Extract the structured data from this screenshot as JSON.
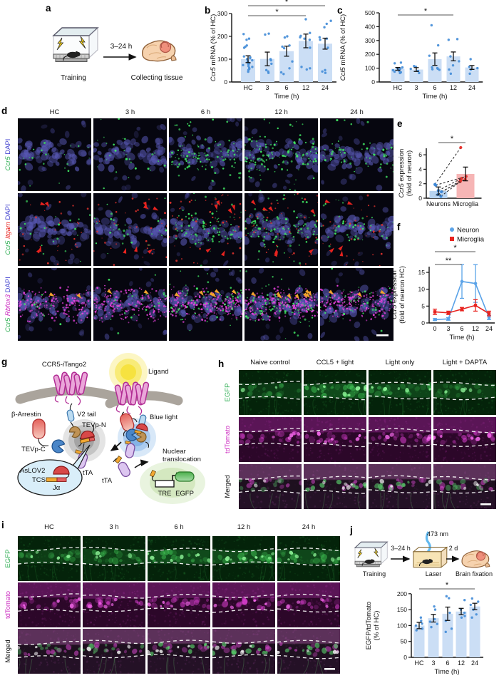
{
  "colors": {
    "bar_fill": "#cbdef5",
    "point_blue": "#4a90d9",
    "green": "#2fae53",
    "magenta": "#cc2cc0",
    "dapi_blue": "#4545d0",
    "red": "#e8231f",
    "orange": "#f2a32c",
    "neuron_line": "#5ba3e8",
    "microglia_line": "#e8231f"
  },
  "panel_a": {
    "label": "a",
    "arrow": "3–24 h",
    "training": "Training",
    "collecting": "Collecting tissue"
  },
  "panel_b": {
    "label": "b"
  },
  "panel_c": {
    "label": "c"
  },
  "panel_d": {
    "label": "d",
    "columns": [
      "HC",
      "3 h",
      "6 h",
      "12 h",
      "24 h"
    ],
    "rows": [
      [
        {
          "t": "Ccr5",
          "c": "#2fae53",
          "i": true
        },
        {
          "t": " DAPI",
          "c": "#4545d0"
        }
      ],
      [
        {
          "t": "Ccr5",
          "c": "#2fae53",
          "i": true
        },
        {
          "t": " ",
          "c": "#111111"
        },
        {
          "t": "Itgam",
          "c": "#e8231f",
          "i": true
        },
        {
          "t": " DAPI",
          "c": "#4545d0"
        }
      ],
      [
        {
          "t": "Ccr5",
          "c": "#2fae53",
          "i": true
        },
        {
          "t": " ",
          "c": "#111111"
        },
        {
          "t": "Rbfox3",
          "c": "#cc2cc0",
          "i": true
        },
        {
          "t": " DAPI",
          "c": "#4545d0"
        }
      ]
    ]
  },
  "panel_e": {
    "label": "e"
  },
  "panel_f": {
    "label": "f"
  },
  "panel_g": {
    "label": "g",
    "labels": {
      "receptor_pre": "CCR5-",
      "receptor_i": "i",
      "receptor_post": "Tango2",
      "beta_arrestin": "β-Arrestin",
      "v2_tail": "V2 tail",
      "tevp_n": "TEVp-N",
      "tevp_c": "TEVp-C",
      "aslov2": "AsLOV2",
      "tcs": "TCS",
      "j_alpha": "Jα",
      "tta_left": "tTA",
      "ligand": "Ligand",
      "blue_light": "Blue light",
      "tta_free": "tTA",
      "nuclear_line1": "Nuclear",
      "nuclear_line2": "translocation",
      "tre": "TRE",
      "egfp": "EGFP"
    }
  },
  "panel_h": {
    "label": "h",
    "columns": [
      "Naive control",
      "CCL5 + light",
      "Light only",
      "Light + DAPTA"
    ],
    "rows": [
      [
        {
          "t": "EGFP",
          "c": "#2fae53"
        }
      ],
      [
        {
          "t": "tdTomato",
          "c": "#cc2cc0"
        }
      ],
      [
        {
          "t": "Merged",
          "c": "#111111"
        }
      ]
    ]
  },
  "panel_i": {
    "label": "i",
    "columns": [
      "HC",
      "3 h",
      "6 h",
      "12 h",
      "24 h"
    ],
    "rows": [
      [
        {
          "t": "EGFP",
          "c": "#2fae53"
        }
      ],
      [
        {
          "t": "tdTomato",
          "c": "#cc2cc0"
        }
      ],
      [
        {
          "t": "Merged",
          "c": "#111111"
        }
      ]
    ]
  },
  "panel_j": {
    "label": "j",
    "arrow1": "3–24 h",
    "wavelength": "473 nm",
    "arrow2": "2 d",
    "training": "Training",
    "laser": "Laser",
    "fixation": "Brain fixation"
  },
  "chart_data": {
    "b": {
      "type": "bar",
      "ylabel": [
        [
          {
            "t": "Ccr5",
            "i": true
          },
          {
            "t": " mRNA (% of HC)"
          }
        ]
      ],
      "xlabel": "Time (h)",
      "categories": [
        "HC",
        "3",
        "6",
        "12",
        "24"
      ],
      "values": [
        100,
        101,
        135,
        180,
        168
      ],
      "errors": [
        15,
        30,
        22,
        30,
        24
      ],
      "points": [
        [
          45,
          52,
          58,
          62,
          66,
          70,
          74,
          78,
          82,
          86,
          90,
          95,
          100,
          104,
          108,
          112,
          150,
          155,
          160,
          185,
          190,
          210
        ],
        [
          40,
          46,
          52,
          80,
          95,
          100,
          208,
          212
        ],
        [
          35,
          42,
          60,
          90,
          148,
          155,
          160,
          195,
          200
        ],
        [
          55,
          60,
          66,
          150,
          185,
          190,
          196,
          202,
          215,
          275
        ],
        [
          40,
          46,
          52,
          150,
          185,
          190,
          196,
          240,
          255,
          268
        ]
      ],
      "ylim": [
        0,
        300
      ],
      "yticks": [
        0,
        100,
        200,
        300
      ],
      "significance": [
        {
          "from": "HC",
          "to": "12",
          "label": "*"
        },
        {
          "from": "HC",
          "to": "24",
          "label": "*"
        }
      ]
    },
    "c": {
      "type": "bar",
      "ylabel": [
        [
          {
            "t": "Ccl5",
            "i": true
          },
          {
            "t": " mRNA (% of HC)"
          }
        ]
      ],
      "xlabel": "Time (h)",
      "categories": [
        "HC",
        "3",
        "6",
        "12",
        "24"
      ],
      "values": [
        95,
        90,
        165,
        185,
        105
      ],
      "errors": [
        10,
        14,
        45,
        32,
        14
      ],
      "points": [
        [
          65,
          70,
          75,
          80,
          85,
          90,
          96,
          100,
          105,
          135,
          140
        ],
        [
          65,
          80,
          95,
          110,
          115
        ],
        [
          88,
          92,
          96,
          100,
          106,
          190,
          265,
          410
        ],
        [
          60,
          90,
          120,
          150,
          185,
          305,
          310
        ],
        [
          60,
          90,
          100,
          110,
          165
        ]
      ],
      "ylim": [
        0,
        500
      ],
      "yticks": [
        0,
        100,
        200,
        300,
        400,
        500
      ],
      "significance": [
        {
          "from": "HC",
          "to": "12",
          "label": "*"
        }
      ]
    },
    "e": {
      "type": "paired-bar",
      "ylabel": [
        [
          {
            "t": "Ccr5",
            "i": true
          },
          {
            "t": " expression"
          }
        ],
        [
          {
            "t": "(fold of neuron)"
          }
        ]
      ],
      "categories": [
        "Neurons",
        "Microglia"
      ],
      "values": [
        1.0,
        3.35
      ],
      "errors": [
        0.55,
        0.95
      ],
      "bar_colors": [
        "#b7d3f0",
        "#f6b5b5"
      ],
      "point_colors": [
        "#3d87d6",
        "#e8352f"
      ],
      "pairs": [
        [
          0.25,
          2.3
        ],
        [
          0.5,
          2.45
        ],
        [
          0.9,
          2.6
        ],
        [
          1.05,
          2.75
        ],
        [
          1.8,
          3.0
        ],
        [
          1.9,
          7.0
        ]
      ],
      "ylim": [
        0,
        7.3
      ],
      "yticks": [
        0,
        2,
        4,
        6
      ],
      "significance": [
        {
          "from": "Neurons",
          "to": "Microglia",
          "label": "*"
        }
      ]
    },
    "f": {
      "type": "line",
      "ylabel": [
        [
          {
            "t": "Ccr5",
            "i": true
          },
          {
            "t": " expression"
          }
        ],
        [
          {
            "t": "(fold of neuron HC)"
          }
        ]
      ],
      "xlabel": "Time (h)",
      "categories": [
        "0",
        "3",
        "6",
        "12",
        "24"
      ],
      "series": [
        {
          "name": "Neuron",
          "color": "#5ba3e8",
          "values": [
            1.0,
            1.2,
            12.3,
            11.7,
            1.6
          ],
          "errors": [
            0.3,
            0.4,
            5.0,
            5.6,
            0.6
          ]
        },
        {
          "name": "Microglia",
          "color": "#e8231f",
          "values": [
            3.3,
            3.0,
            4.1,
            5.2,
            2.8
          ],
          "errors": [
            0.8,
            0.5,
            0.5,
            1.7,
            0.7
          ]
        }
      ],
      "ylim": [
        0,
        18
      ],
      "yticks": [
        0,
        5,
        10,
        15
      ],
      "legend_position": "top-right",
      "significance": [
        {
          "from": "0",
          "to": "6",
          "label": "**"
        },
        {
          "from": "0",
          "to": "12",
          "label": "*"
        }
      ]
    },
    "j": {
      "type": "bar",
      "ylabel": [
        [
          {
            "t": "EGFP/tdTomato"
          }
        ],
        [
          {
            "t": "(% of HC)"
          }
        ]
      ],
      "xlabel": "Time (h)",
      "categories": [
        "HC",
        "3",
        "6",
        "12",
        "24"
      ],
      "values": [
        100,
        123,
        137,
        144,
        160
      ],
      "errors": [
        10,
        12,
        21,
        10,
        10
      ],
      "points": [
        [
          85,
          90,
          100,
          106,
          115,
          125
        ],
        [
          95,
          105,
          112,
          120,
          150,
          160
        ],
        [
          80,
          90,
          115,
          140,
          186,
          192
        ],
        [
          125,
          130,
          140,
          150,
          180
        ],
        [
          125,
          135,
          150,
          165,
          175,
          185
        ]
      ],
      "ylim": [
        0,
        215
      ],
      "yticks": [
        0,
        50,
        100,
        150,
        200
      ],
      "significance": [
        {
          "from": "HC",
          "to": "24",
          "label": "*"
        }
      ]
    }
  }
}
